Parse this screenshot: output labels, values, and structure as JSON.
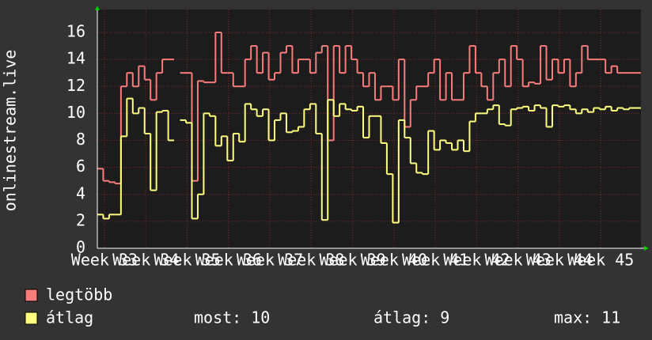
{
  "chart_data": {
    "type": "step",
    "y_label": "onlinestream.live",
    "x": [
      0,
      1,
      2,
      3,
      4,
      5,
      6,
      7,
      8,
      9,
      10,
      11,
      12,
      13,
      14,
      15,
      16,
      17,
      18,
      19,
      20,
      21,
      22,
      23,
      24,
      25,
      26,
      27,
      28,
      29,
      30,
      31,
      32,
      33,
      34,
      35,
      36,
      37,
      38,
      39,
      40,
      41,
      42,
      43,
      44,
      45,
      46,
      47,
      48,
      49,
      50,
      51,
      52,
      53,
      54,
      55,
      56,
      57,
      58,
      59,
      60,
      61,
      62,
      63,
      64,
      65,
      66,
      67,
      68,
      69,
      70,
      71,
      72,
      73,
      74,
      75,
      76,
      77,
      78,
      79,
      80,
      81,
      82,
      83,
      84,
      85,
      86,
      87,
      88,
      89,
      90,
      91
    ],
    "xlim": [
      0,
      92
    ],
    "xticks": [
      {
        "value": 1.2,
        "label": "Week 33"
      },
      {
        "value": 8.2,
        "label": "Week 34"
      },
      {
        "value": 15.2,
        "label": "Week 35"
      },
      {
        "value": 22.2,
        "label": "Week 36"
      },
      {
        "value": 29.2,
        "label": "Week 37"
      },
      {
        "value": 36.2,
        "label": "Week 38"
      },
      {
        "value": 43.2,
        "label": "Week 39"
      },
      {
        "value": 50.2,
        "label": "Week 40"
      },
      {
        "value": 57.2,
        "label": "Week 41"
      },
      {
        "value": 64.2,
        "label": "Week 42"
      },
      {
        "value": 71.2,
        "label": "Week 43"
      },
      {
        "value": 78.2,
        "label": "Week 44"
      },
      {
        "value": 85.2,
        "label": "Week 45"
      }
    ],
    "ylim": [
      0,
      17.7
    ],
    "yticks": [
      0,
      2,
      4,
      6,
      8,
      10,
      12,
      14,
      16
    ],
    "grid": true,
    "series": [
      {
        "name": "legtöbb",
        "color": "#f87c7c",
        "values": [
          5.9,
          5.0,
          4.9,
          4.8,
          12,
          13,
          12,
          13.5,
          12.5,
          11,
          13,
          14,
          14,
          null,
          13,
          13,
          5,
          12.4,
          12.3,
          12.3,
          16,
          13,
          13,
          12,
          12,
          14,
          15,
          13,
          14.5,
          12.5,
          13,
          14.5,
          15,
          13,
          14,
          14,
          13,
          14.5,
          15,
          8,
          15,
          13,
          15,
          14,
          13,
          12,
          13,
          11,
          12,
          12,
          11,
          14,
          9,
          11,
          12,
          12,
          13,
          14,
          11,
          13,
          11,
          11,
          13,
          15,
          13,
          12,
          11,
          13,
          14,
          12,
          15,
          14,
          12,
          12.3,
          12.2,
          15,
          12.5,
          14,
          13,
          14,
          12,
          13,
          15,
          14,
          14,
          14,
          13,
          13.5,
          13,
          13,
          13,
          13
        ]
      },
      {
        "name": "átlag",
        "color": "#ffff80",
        "values": [
          2.5,
          2.2,
          2.5,
          2.5,
          8.3,
          11.1,
          10,
          10.4,
          8.5,
          4.3,
          10.1,
          10.2,
          8,
          null,
          9.5,
          9.3,
          2.2,
          4,
          10,
          9.8,
          7.6,
          8.3,
          6.5,
          8.5,
          7.9,
          10.7,
          10.3,
          9.8,
          10.3,
          8,
          9.5,
          10,
          8.6,
          8.7,
          9,
          10.3,
          10.7,
          8.5,
          2.1,
          11,
          9.8,
          10.7,
          10.3,
          10.2,
          10.5,
          8.2,
          9.8,
          9.8,
          7.8,
          5.5,
          1.9,
          9.5,
          8.2,
          6.3,
          5.6,
          5.5,
          8.7,
          7.3,
          8,
          7.8,
          7.3,
          8,
          7.2,
          9.4,
          10,
          10,
          10.3,
          10.6,
          9.2,
          9.1,
          10.3,
          10.4,
          10.5,
          10.2,
          10.6,
          10.4,
          9,
          10.6,
          10.5,
          10.6,
          10.3,
          10,
          10.3,
          10.1,
          10.4,
          10.3,
          10.5,
          10.2,
          10.4,
          10.3,
          10.4,
          10.4
        ]
      }
    ],
    "stats": [
      {
        "label": "most:",
        "value": 10
      },
      {
        "label": "átlag:",
        "value": 9
      },
      {
        "label": "max:",
        "value": 11
      }
    ]
  }
}
